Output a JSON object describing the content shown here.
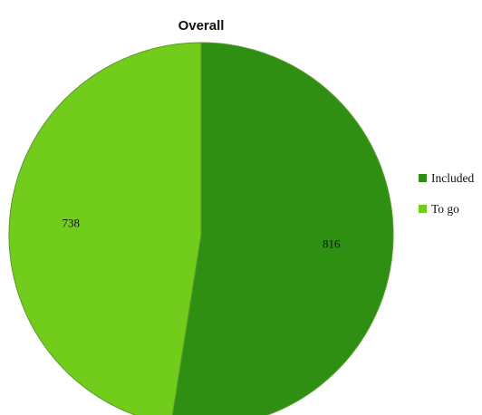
{
  "chart_data": {
    "type": "pie",
    "title": "Overall",
    "slices": [
      {
        "label": "Included",
        "value": 816,
        "color": "#2f8f12"
      },
      {
        "label": "To go",
        "value": 738,
        "color": "#72cc1b"
      }
    ],
    "legend_position": "right"
  }
}
